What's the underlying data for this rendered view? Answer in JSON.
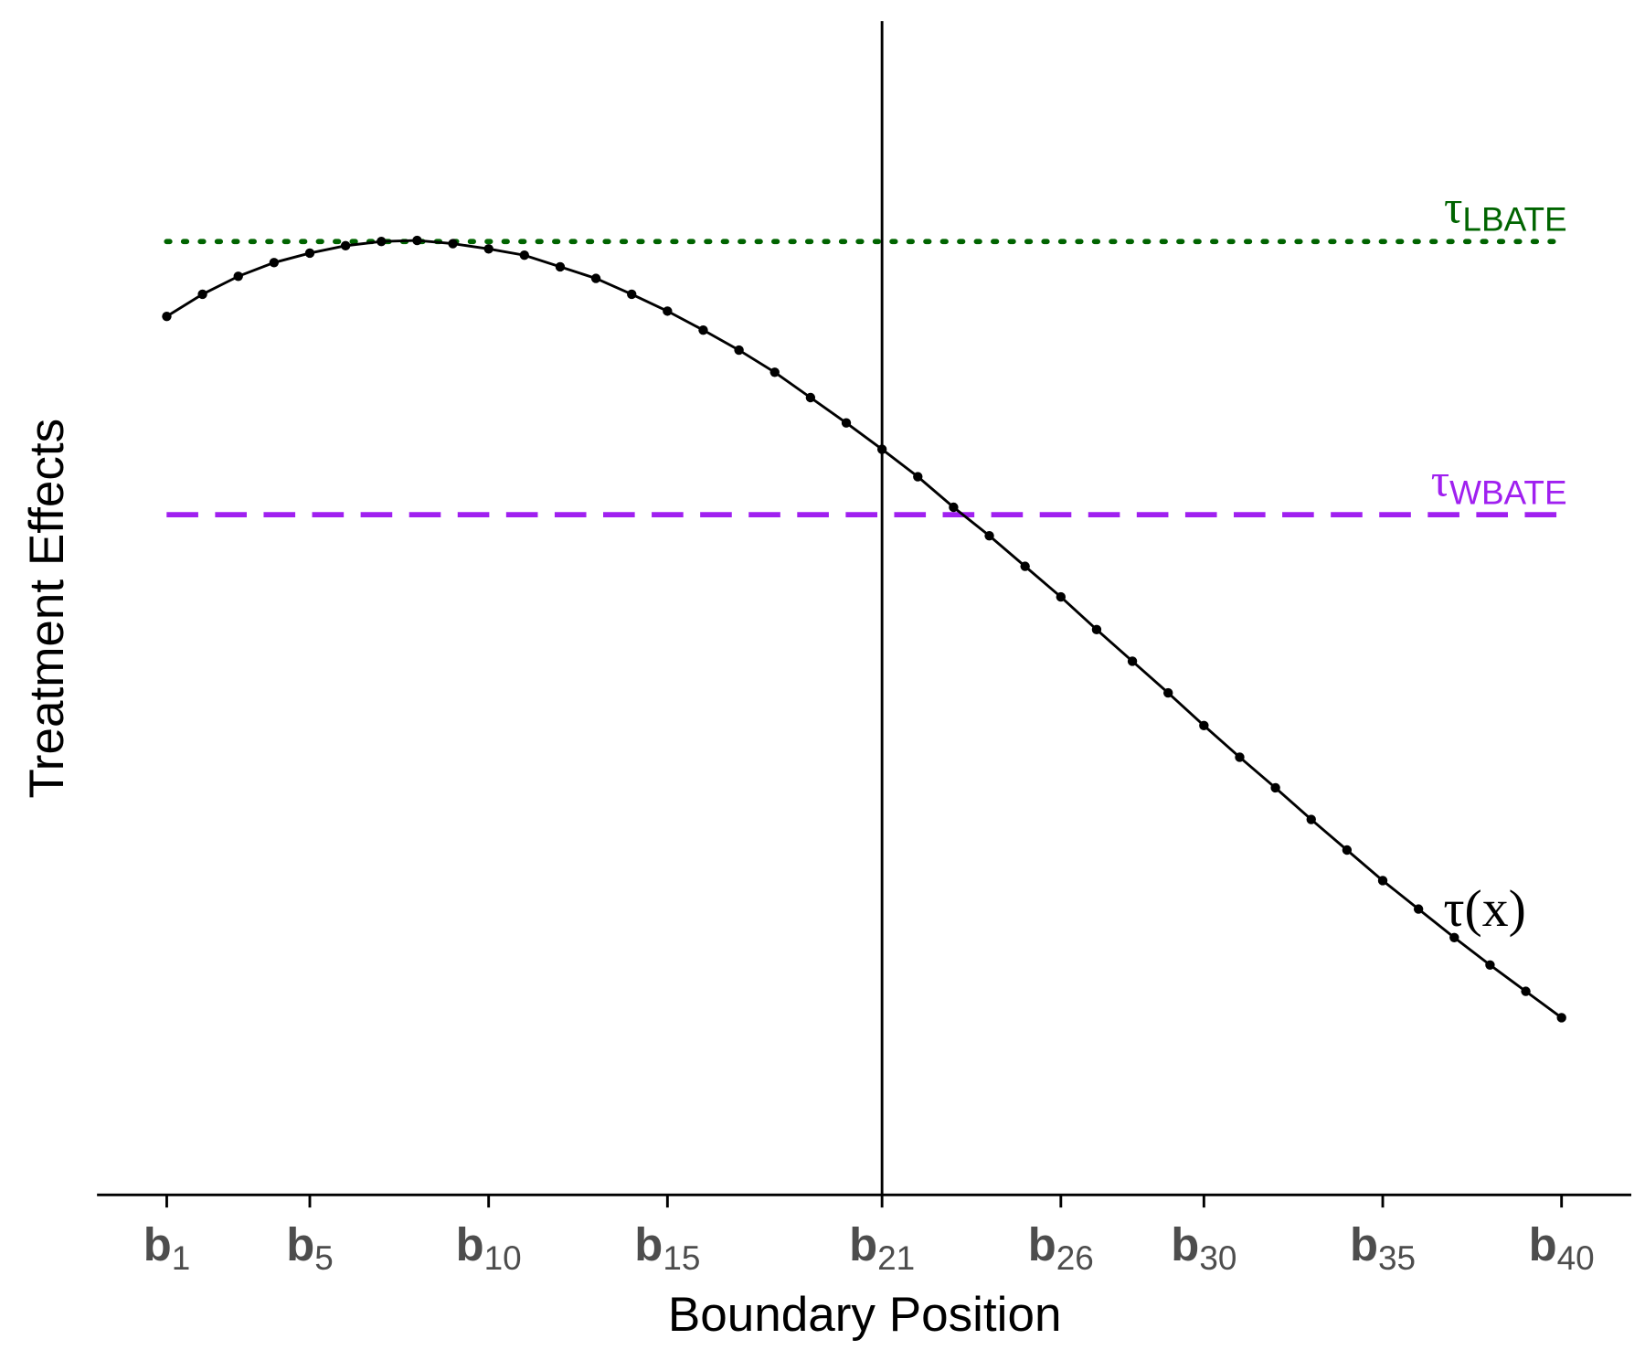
{
  "chart_data": {
    "type": "line",
    "xlabel": "Boundary Position",
    "ylabel": "Treatment Effects",
    "x": [
      1,
      2,
      3,
      4,
      5,
      6,
      7,
      8,
      9,
      10,
      11,
      12,
      13,
      14,
      15,
      16,
      17,
      18,
      19,
      20,
      21,
      22,
      23,
      24,
      25,
      26,
      27,
      28,
      29,
      30,
      31,
      32,
      33,
      34,
      35,
      36,
      37,
      38,
      39,
      40
    ],
    "series": [
      {
        "name": "τ(x)",
        "color": "#000000",
        "values": [
          8.33,
          8.54,
          8.71,
          8.84,
          8.93,
          9.0,
          9.04,
          9.05,
          9.02,
          8.97,
          8.91,
          8.8,
          8.69,
          8.54,
          8.38,
          8.2,
          8.01,
          7.8,
          7.56,
          7.32,
          7.07,
          6.81,
          6.52,
          6.25,
          5.96,
          5.67,
          5.36,
          5.06,
          4.76,
          4.45,
          4.15,
          3.86,
          3.56,
          3.27,
          2.98,
          2.71,
          2.44,
          2.18,
          1.93,
          1.68
        ]
      }
    ],
    "reference_lines": [
      {
        "name": "τLBATE",
        "value": 9.04,
        "color": "#006400",
        "style": "dotted"
      },
      {
        "name": "τWBATE",
        "value": 6.45,
        "color": "#a020f0",
        "style": "dashed"
      }
    ],
    "vline": 21,
    "xlim": [
      -0.95,
      41.95
    ],
    "ylim": [
      0,
      11.13
    ],
    "xticks": [
      {
        "value": 1,
        "label": "b1"
      },
      {
        "value": 5,
        "label": "b5"
      },
      {
        "value": 10,
        "label": "b10"
      },
      {
        "value": 15,
        "label": "b15"
      },
      {
        "value": 21,
        "label": "b21"
      },
      {
        "value": 26,
        "label": "b26"
      },
      {
        "value": 30,
        "label": "b30"
      },
      {
        "value": 35,
        "label": "b35"
      },
      {
        "value": 40,
        "label": "b40"
      }
    ]
  }
}
